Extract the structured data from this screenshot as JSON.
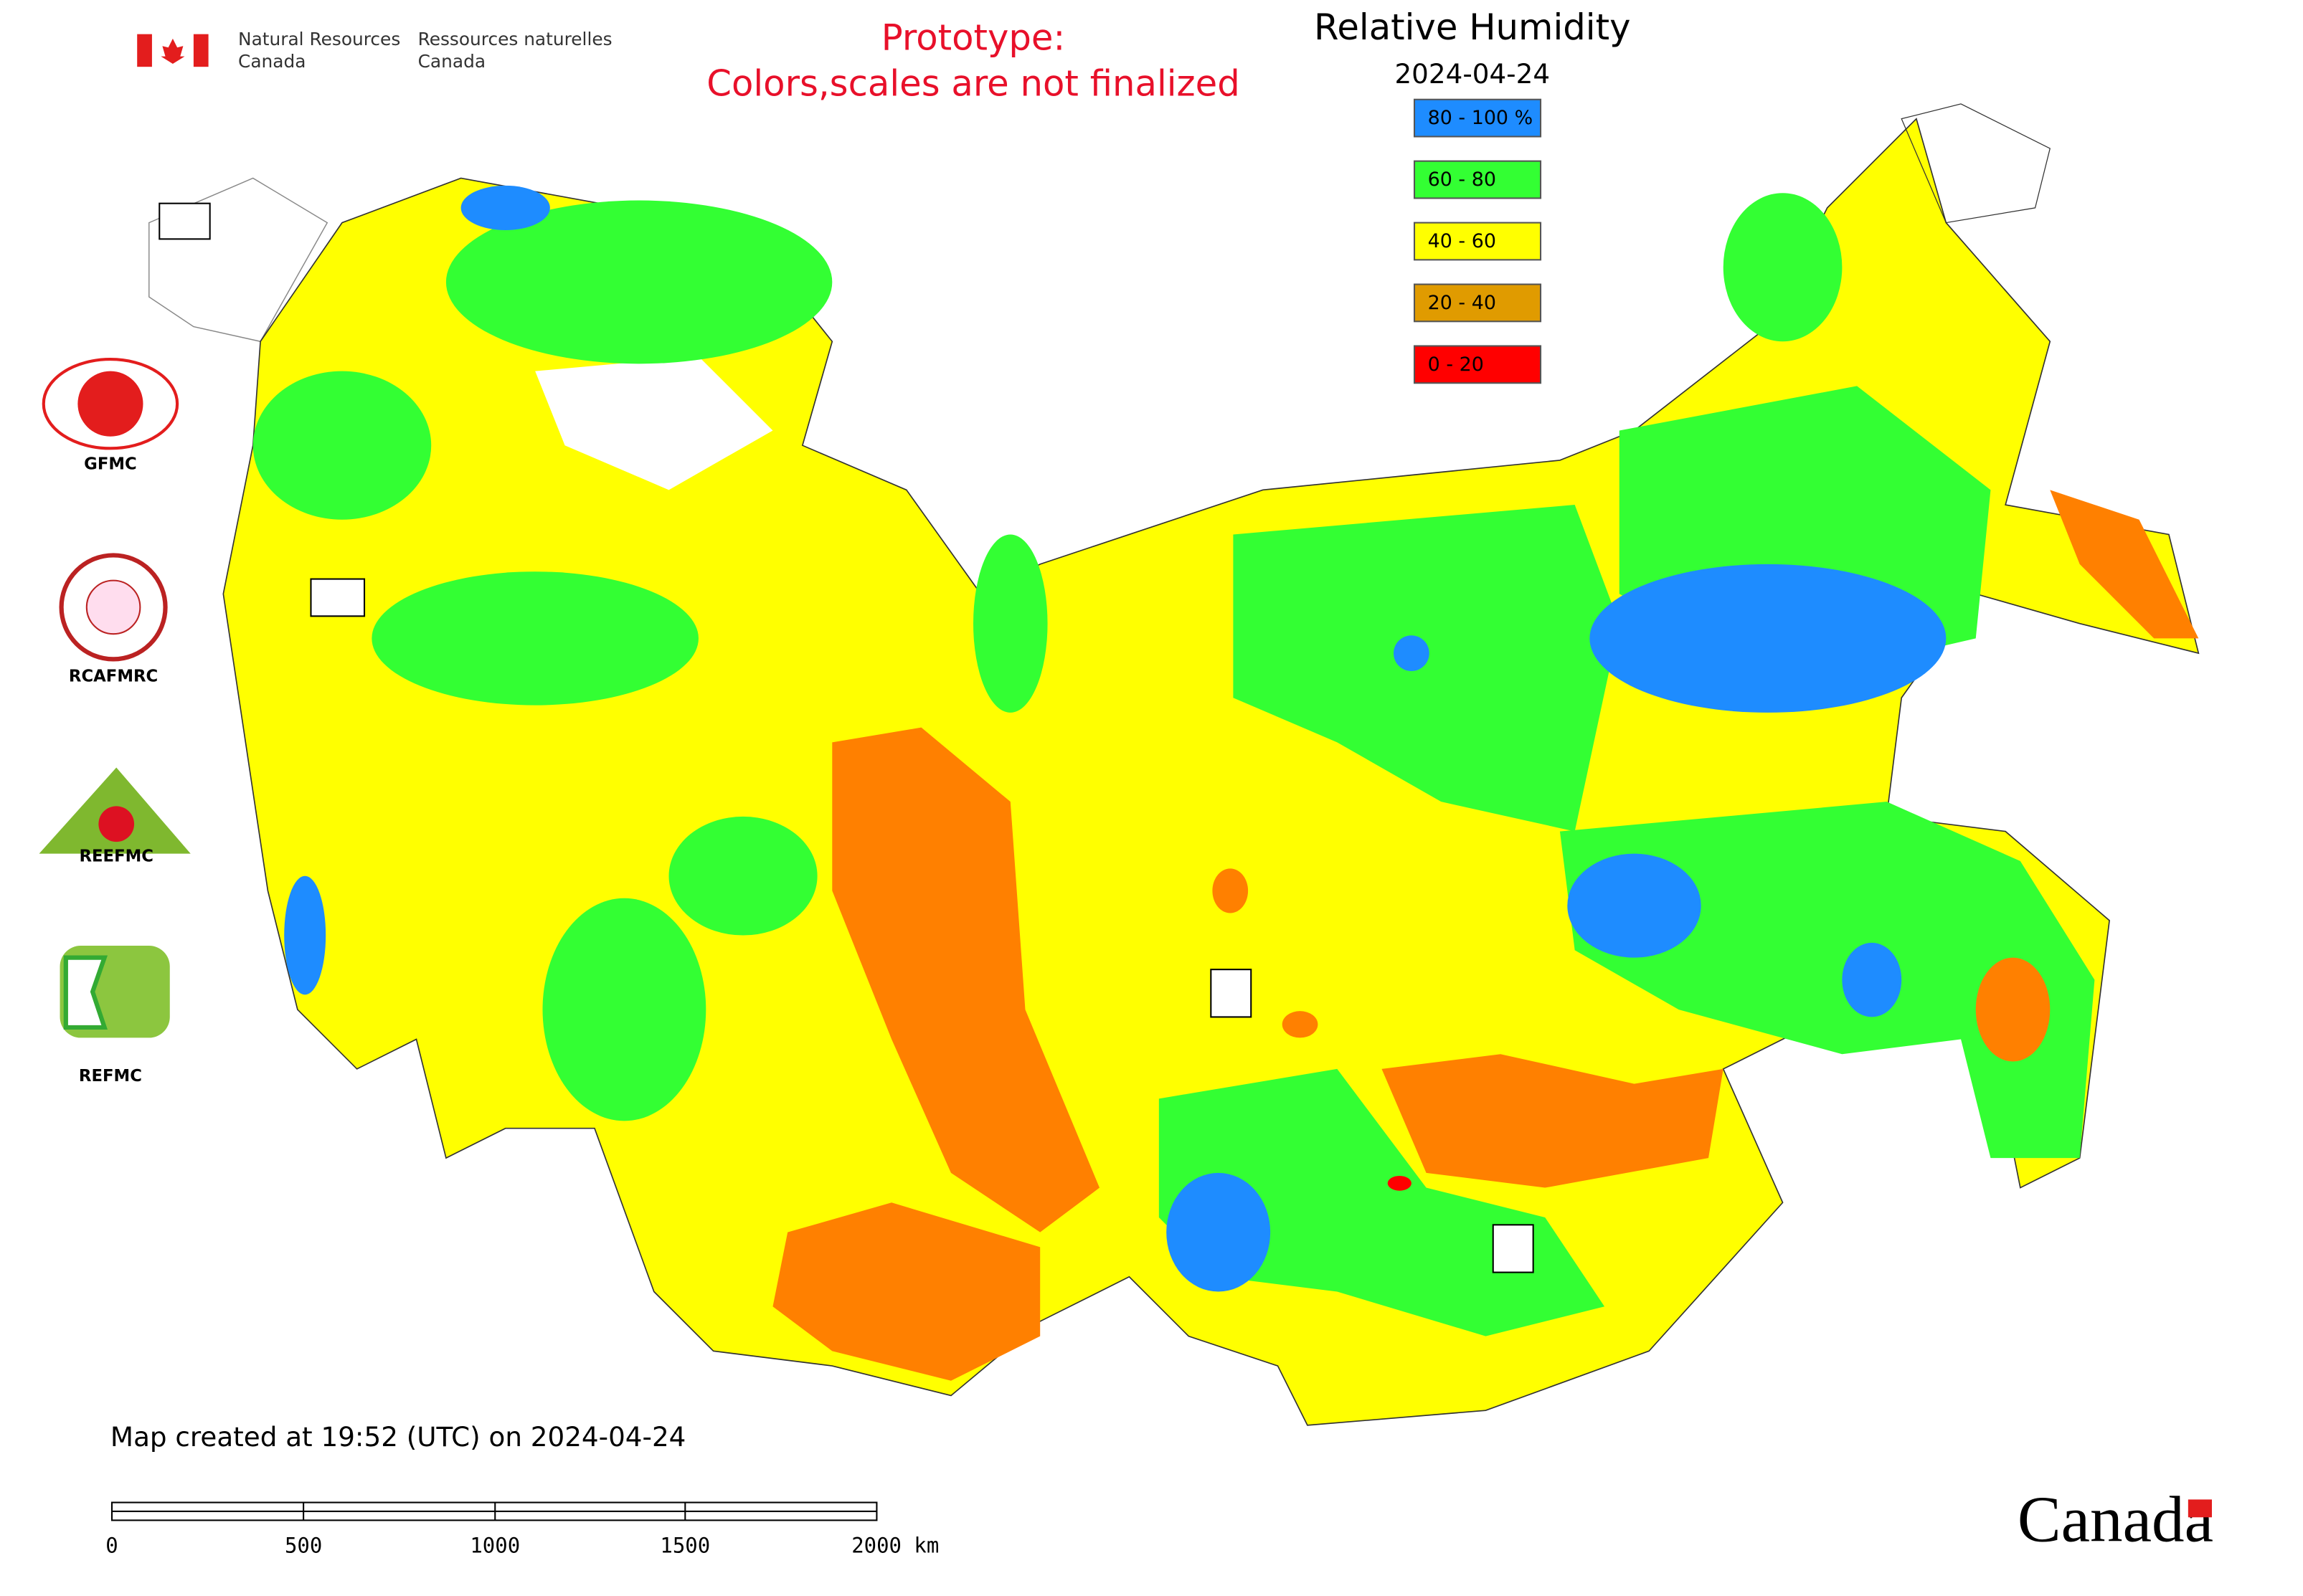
{
  "header": {
    "dept_en": [
      "Natural Resources",
      "Canada"
    ],
    "dept_fr": [
      "Ressources naturelles",
      "Canada"
    ],
    "notice": [
      "Prototype:",
      "Colors,scales are not finalized"
    ]
  },
  "map": {
    "title": "Relative Humidity",
    "date": "2024-04-24",
    "legend": [
      {
        "label": "80 - 100 %",
        "color": "#1e8cff"
      },
      {
        "label": "60 - 80",
        "color": "#33ff33"
      },
      {
        "label": "40 - 60",
        "color": "#ffff00"
      },
      {
        "label": "20 - 40",
        "color": "#e09b00"
      },
      {
        "label": "0 - 20",
        "color": "#ff0000"
      }
    ],
    "map_colors": {
      "high": "#1e8cff",
      "mid": "#33ff33",
      "base": "#ffff00",
      "low": "#ff8000",
      "min": "#ff0000"
    }
  },
  "logos": [
    "GFMC",
    "RCAFMRC",
    "REEFMC",
    "REFMC"
  ],
  "footer": {
    "created": "Map created at 19:52 (UTC) on 2024-04-24",
    "scale_labels": [
      "0",
      "500",
      "1000",
      "1500",
      "2000 km"
    ],
    "wordmark": "Canada"
  }
}
